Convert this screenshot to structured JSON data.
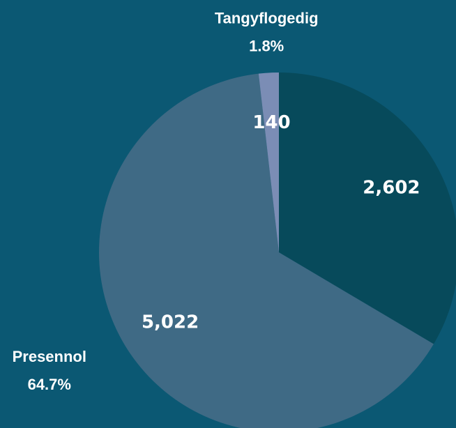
{
  "chart_data": {
    "type": "pie",
    "categories": [
      null,
      "Presennol",
      "Tangyflogedig"
    ],
    "values": [
      2602,
      5022,
      140
    ],
    "value_labels": [
      "2,602",
      "5,022",
      "140"
    ],
    "percent_labels": [
      null,
      "64.7%",
      "1.8%"
    ],
    "colors": [
      "#074a5b",
      "#3f6a85",
      "#7b8db5"
    ],
    "background": "#0b5873"
  }
}
